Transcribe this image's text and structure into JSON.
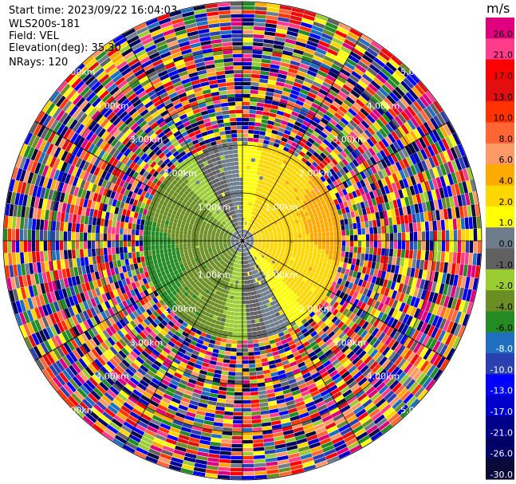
{
  "header": {
    "start_time": "Start time: 2023/09/22 16:04:03",
    "instrument": "WLS200s-181",
    "field": "Field: VEL",
    "elevation": "Elevation(deg): 35.30",
    "nrays": "NRays: 120"
  },
  "chart_data": {
    "type": "heatmap",
    "projection": "polar-ppi",
    "field": "VEL",
    "n_rays": 120,
    "range_rings": [
      "1.00km",
      "2.00km",
      "3.00km",
      "4.00km",
      "5.00km"
    ],
    "colorbar": {
      "unit": "m/s",
      "ticks": [
        "26.0",
        "21.0",
        "17.0",
        "13.0",
        "10.0",
        "8.0",
        "6.0",
        "4.0",
        "2.0",
        "1.0",
        "0.0",
        "-1.0",
        "-2.0",
        "-4.0",
        "-6.0",
        "-8.0",
        "-10.0",
        "-13.0",
        "-17.0",
        "-21.0",
        "-26.0",
        "-30.0"
      ],
      "colors": [
        "#e0007f",
        "#ff3b8c",
        "#ff0000",
        "#e01010",
        "#ff3300",
        "#ff6633",
        "#ff9966",
        "#ffaa00",
        "#ffd700",
        "#ffff00",
        "#6e7d8c",
        "#606060",
        "#9acd32",
        "#6b8e23",
        "#228b22",
        "#1f6fc0",
        "#2a3fb0",
        "#0000ff",
        "#0000cc",
        "#00008b",
        "#000066",
        "#0a0a3a"
      ]
    }
  }
}
